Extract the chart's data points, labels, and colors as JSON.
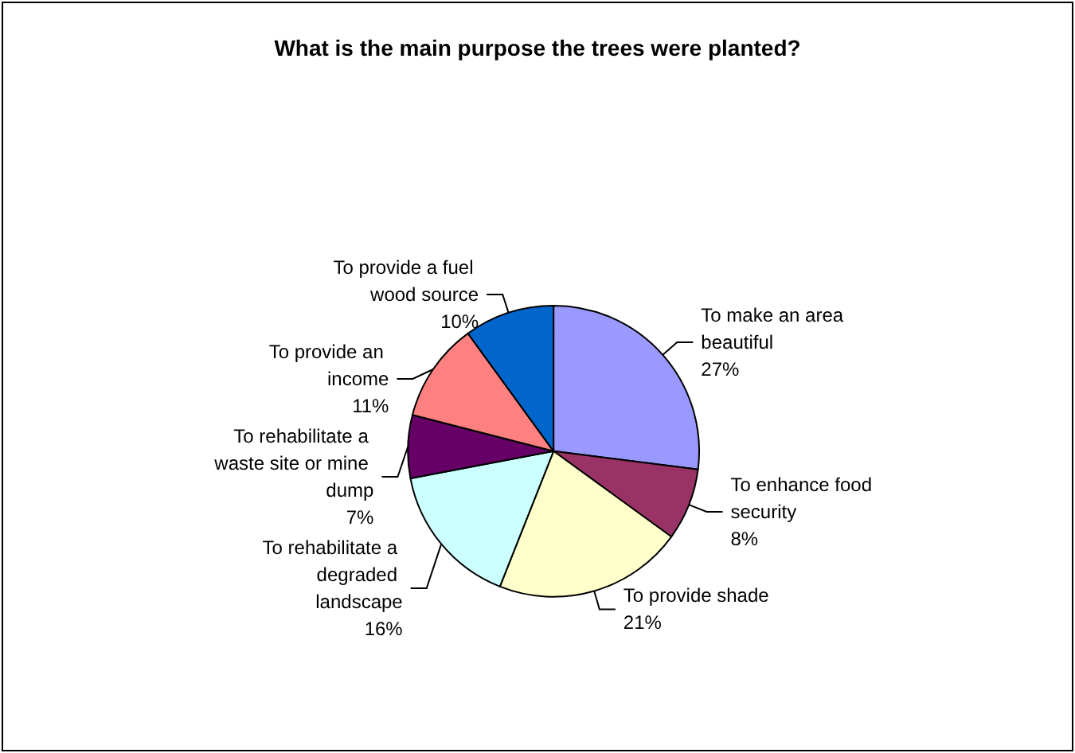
{
  "chart_data": {
    "type": "pie",
    "title": "What is the main purpose the trees were planted?",
    "categories": [
      "To make an area beautiful",
      "To enhance food security",
      "To provide shade",
      "To rehabilitate a degraded landscape",
      "To rehabilitate a waste site or mine dump",
      "To provide an income",
      "To provide a fuel wood source"
    ],
    "values": [
      27,
      8,
      21,
      16,
      7,
      11,
      10
    ],
    "value_labels": [
      "27%",
      "8%",
      "21%",
      "16%",
      "7%",
      "11%",
      "10%"
    ],
    "colors": [
      "#9999ff",
      "#993366",
      "#ffffcc",
      "#ccffff",
      "#660066",
      "#ff8080",
      "#0066cc"
    ],
    "legend": false
  }
}
